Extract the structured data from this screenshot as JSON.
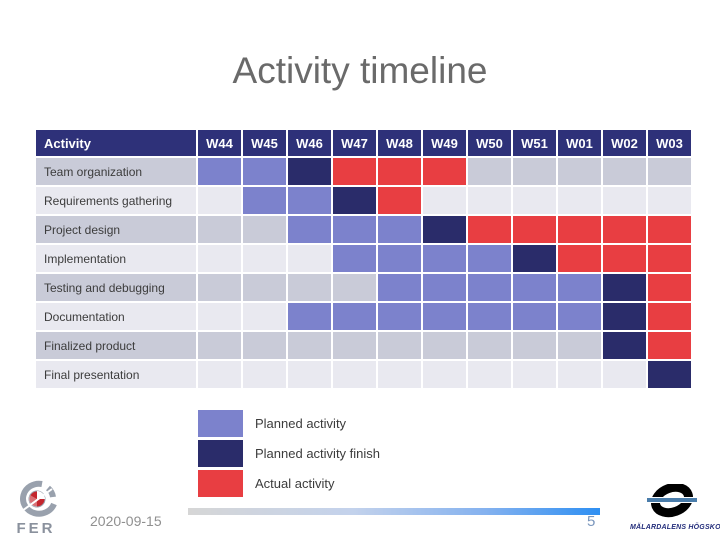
{
  "slide": {
    "title": "Activity timeline",
    "footer": {
      "date": "2020-09-15",
      "page_number": "5",
      "fer_logo_text": "FER",
      "university_logo_text": "MÄLARDALENS HÖGSKOLA"
    }
  },
  "colors": {
    "header_bg": "#2e3179",
    "planned": "#7c82cc",
    "planned_finish": "#2a2c6a",
    "actual": "#e83e42",
    "row_odd_bg": "#c9cbd8",
    "row_even_bg": "#e9e9f0",
    "title_text": "#6a6a6a",
    "footer_bar_blue": "#2e8ff2",
    "page_number_text": "#7b97bd"
  },
  "chart_data": {
    "type": "table",
    "subtype": "gantt-timeline",
    "title": "Activity timeline",
    "columns": [
      "Activity",
      "W44",
      "W45",
      "W46",
      "W47",
      "W48",
      "W49",
      "W50",
      "W51",
      "W01",
      "W02",
      "W03"
    ],
    "legend_position": "below-left",
    "legend": [
      {
        "label": "Planned activity",
        "state": "planned",
        "color": "#7c82cc"
      },
      {
        "label": "Planned activity finish",
        "state": "finish",
        "color": "#2a2c6a"
      },
      {
        "label": "Actual activity",
        "state": "actual",
        "color": "#e83e42"
      }
    ],
    "rows": [
      {
        "activity": "Team organization",
        "cells": [
          "planned",
          "planned",
          "finish",
          "actual",
          "actual",
          "actual",
          "",
          "",
          "",
          "",
          ""
        ]
      },
      {
        "activity": "Requirements gathering",
        "cells": [
          "",
          "planned",
          "planned",
          "finish",
          "actual",
          "",
          "",
          "",
          "",
          "",
          ""
        ]
      },
      {
        "activity": "Project design",
        "cells": [
          "",
          "",
          "planned",
          "planned",
          "planned",
          "finish",
          "actual",
          "actual",
          "actual",
          "actual",
          "actual"
        ]
      },
      {
        "activity": "Implementation",
        "cells": [
          "",
          "",
          "",
          "planned",
          "planned",
          "planned",
          "planned",
          "finish",
          "actual",
          "actual",
          "actual"
        ]
      },
      {
        "activity": "Testing and debugging",
        "cells": [
          "",
          "",
          "",
          "",
          "planned",
          "planned",
          "planned",
          "planned",
          "planned",
          "finish",
          "actual"
        ]
      },
      {
        "activity": "Documentation",
        "cells": [
          "",
          "",
          "planned",
          "planned",
          "planned",
          "planned",
          "planned",
          "planned",
          "planned",
          "finish",
          "actual"
        ]
      },
      {
        "activity": "Finalized product",
        "cells": [
          "",
          "",
          "",
          "",
          "",
          "",
          "",
          "",
          "",
          "finish",
          "actual"
        ]
      },
      {
        "activity": "Final presentation",
        "cells": [
          "",
          "",
          "",
          "",
          "",
          "",
          "",
          "",
          "",
          "",
          "finish"
        ]
      }
    ]
  }
}
